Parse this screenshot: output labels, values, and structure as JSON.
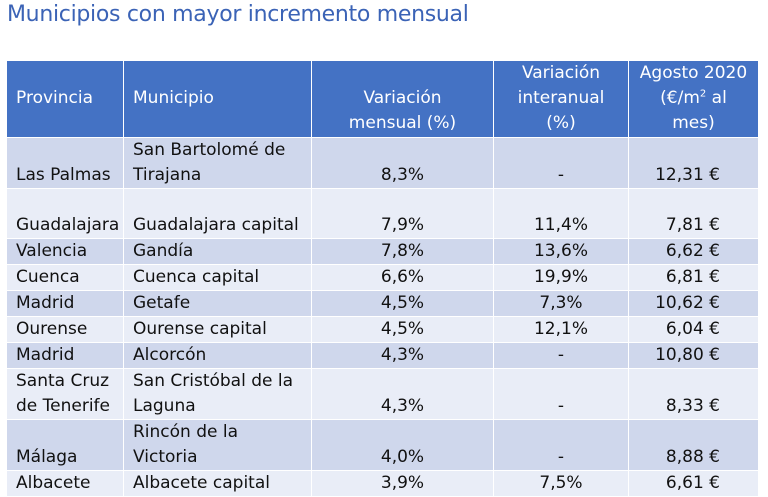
{
  "title": "Municipios con mayor incremento mensual",
  "table": {
    "headers": {
      "provincia": "Provincia",
      "municipio": "Municipio",
      "var_mensual_1": "Variación",
      "var_mensual_2": "mensual (%)",
      "var_interanual_1": "Variación",
      "var_interanual_2": "interanual (%)",
      "precio_1": "Agosto 2020",
      "precio_2_pre": "(€/m",
      "precio_2_sup": "2",
      "precio_2_post": " al mes)"
    },
    "rows": [
      {
        "provincia": "Las Palmas",
        "municipio": "San Bartolomé de Tirajana",
        "mensual": "8,3%",
        "interanual": "-",
        "precio": "12,31 €"
      },
      {
        "provincia": "Guadalajara",
        "municipio": "Guadalajara capital",
        "mensual": "7,9%",
        "interanual": "11,4%",
        "precio": "7,81 €"
      },
      {
        "provincia": "Valencia",
        "municipio": "Gandía",
        "mensual": "7,8%",
        "interanual": "13,6%",
        "precio": "6,62 €"
      },
      {
        "provincia": "Cuenca",
        "municipio": "Cuenca capital",
        "mensual": "6,6%",
        "interanual": "19,9%",
        "precio": "6,81 €"
      },
      {
        "provincia": "Madrid",
        "municipio": "Getafe",
        "mensual": "4,5%",
        "interanual": "7,3%",
        "precio": "10,62 €"
      },
      {
        "provincia": "Ourense",
        "municipio": "Ourense capital",
        "mensual": "4,5%",
        "interanual": "12,1%",
        "precio": "6,04 €"
      },
      {
        "provincia": "Madrid",
        "municipio": "Alcorcón",
        "mensual": "4,3%",
        "interanual": "-",
        "precio": "10,80 €"
      },
      {
        "provincia": "Santa Cruz de Tenerife",
        "municipio": "San Cristóbal de la Laguna",
        "mensual": "4,3%",
        "interanual": "-",
        "precio": "8,33 €"
      },
      {
        "provincia": "Málaga",
        "municipio": "Rincón de la Victoria",
        "mensual": "4,0%",
        "interanual": "-",
        "precio": "8,88 €"
      },
      {
        "provincia": "Albacete",
        "municipio": "Albacete capital",
        "mensual": "3,9%",
        "interanual": "7,5%",
        "precio": "6,61 €"
      }
    ]
  }
}
